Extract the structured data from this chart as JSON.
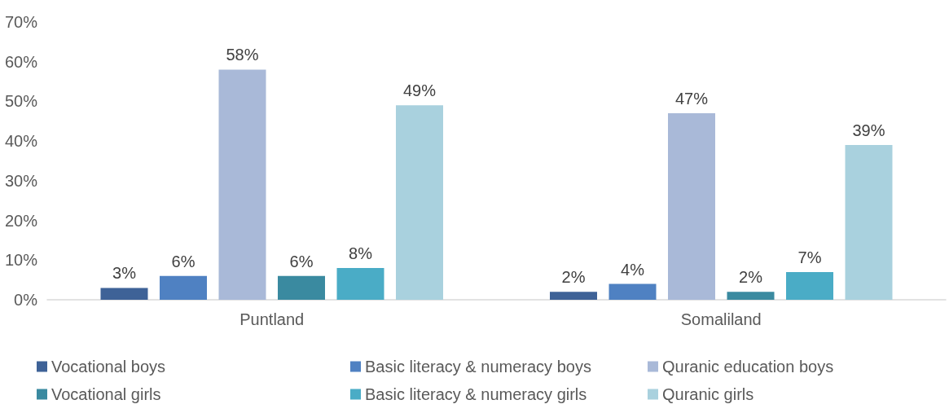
{
  "chart_data": {
    "type": "bar",
    "categories": [
      "Puntland",
      "Somaliland"
    ],
    "series": [
      {
        "name": "Vocational boys",
        "color": "#3e6297",
        "values": [
          3,
          2
        ],
        "value_labels": [
          "3%",
          "2%"
        ]
      },
      {
        "name": "Basic literacy & numeracy boys",
        "color": "#4f81c2",
        "values": [
          6,
          4
        ],
        "value_labels": [
          "6%",
          "4%"
        ]
      },
      {
        "name": "Quranic education boys",
        "color": "#a9b9d8",
        "values": [
          58,
          47
        ],
        "value_labels": [
          "58%",
          "47%"
        ]
      },
      {
        "name": "Vocational girls",
        "color": "#3a8aa0",
        "values": [
          6,
          2
        ],
        "value_labels": [
          "6%",
          "2%"
        ]
      },
      {
        "name": "Basic literacy & numeracy girls",
        "color": "#4aacc6",
        "values": [
          8,
          7
        ],
        "value_labels": [
          "8%",
          "7%"
        ]
      },
      {
        "name": "Quranic girls",
        "color": "#a9d1de",
        "values": [
          49,
          39
        ],
        "value_labels": [
          "49%",
          "39%"
        ]
      }
    ],
    "ylim": [
      0,
      70
    ],
    "yticks": [
      {
        "value": 0,
        "label": "0%"
      },
      {
        "value": 10,
        "label": "10%"
      },
      {
        "value": 20,
        "label": "20%"
      },
      {
        "value": 30,
        "label": "30%"
      },
      {
        "value": 40,
        "label": "40%"
      },
      {
        "value": 50,
        "label": "50%"
      },
      {
        "value": 60,
        "label": "60%"
      },
      {
        "value": 70,
        "label": "70%"
      }
    ],
    "grid": false,
    "legend": "bottom"
  }
}
